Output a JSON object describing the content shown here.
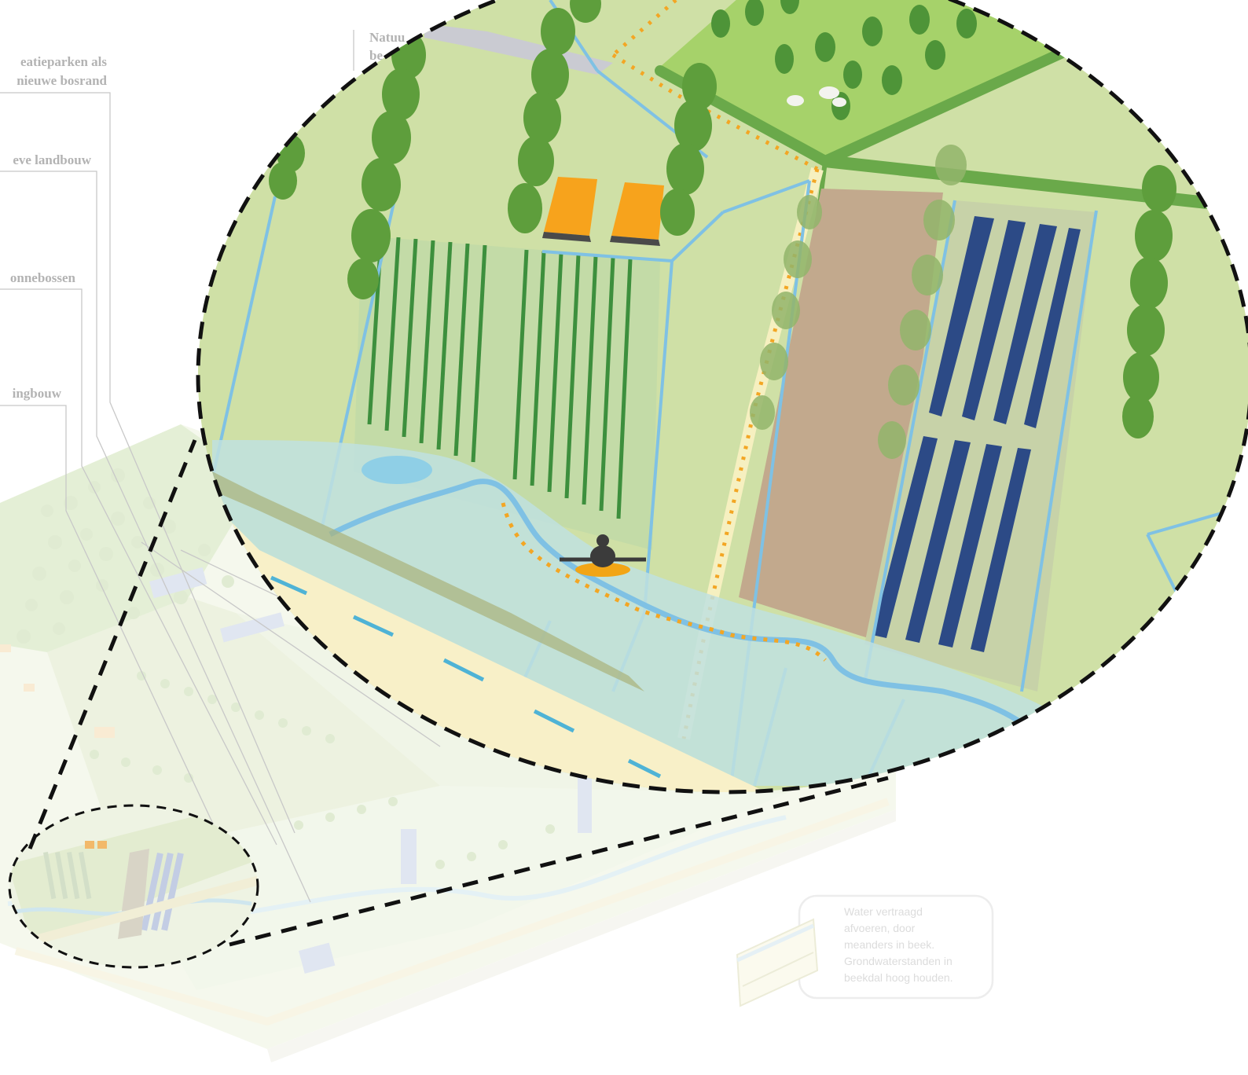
{
  "labels": {
    "recreatieparken": [
      "eatieparken als",
      "nieuwe bosrand"
    ],
    "landbouw": "eve landbouw",
    "zonnebossen": "onnebossen",
    "woningbouw": "ingbouw",
    "natuur": [
      "Natuu",
      "be"
    ]
  },
  "note": {
    "lines": [
      "Water vertraagd",
      "afvoeren, door",
      "meanders in beek.",
      "Grondwaterstanden in",
      "beekdal hoog houden."
    ]
  },
  "colors": {
    "field": "#cfe0a6",
    "field_light": "#e2ecc6",
    "ditch": "#7fc1e4",
    "wetland": "#bfe1df",
    "path_dots": "#f3a624",
    "trees": "#5e9e3c",
    "meadow": "#a6d26a",
    "road": "#f8f0c8",
    "solar": "#2c4a86",
    "kayak": "#f2a515",
    "buildings": "#f7a31c",
    "brown_field": "#c2a98d",
    "dashed_outline": "#000000"
  },
  "icons": [
    "kayak-icon",
    "sheep-icon",
    "building-icon",
    "solar-panel-icon",
    "tree-icon",
    "pond-icon"
  ]
}
